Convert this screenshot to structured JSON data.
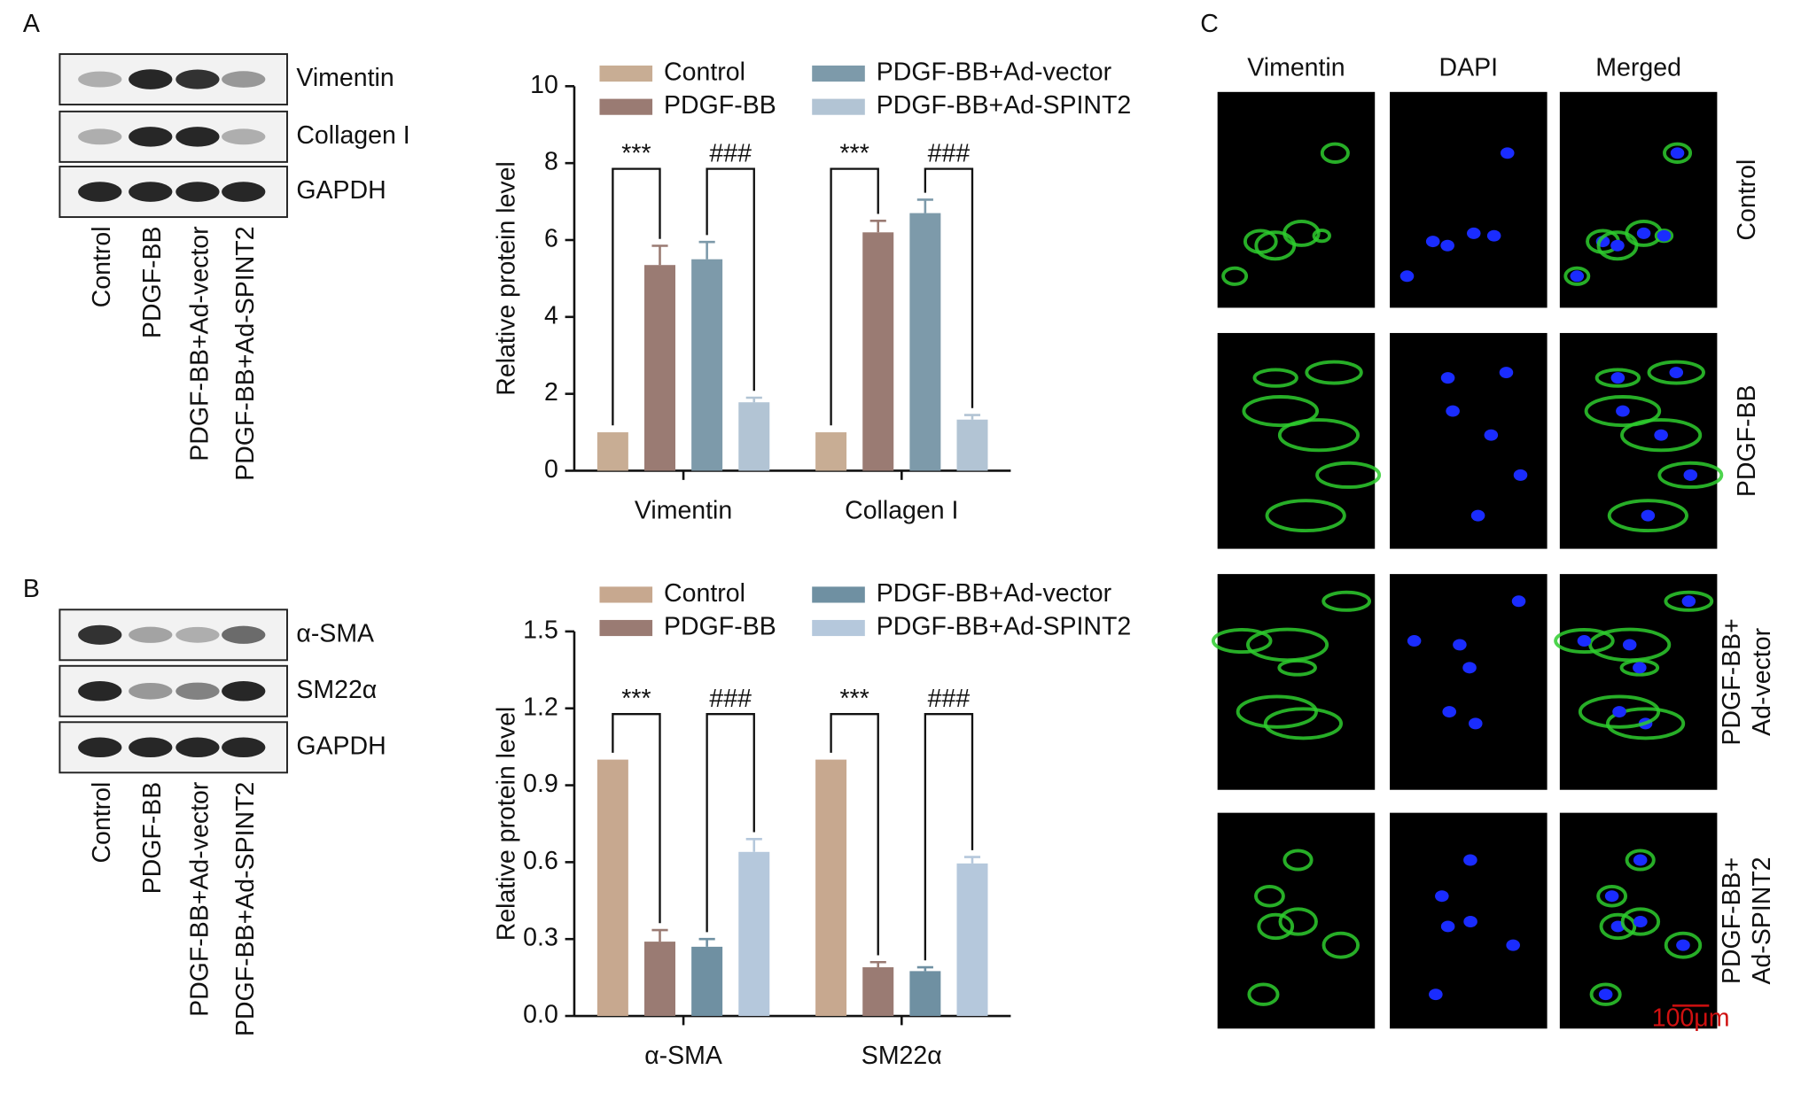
{
  "panels": [
    "A",
    "B",
    "C"
  ],
  "blots": [
    {
      "proteins": [
        "Vimentin",
        "Collagen I",
        "GAPDH"
      ],
      "lanes": [
        "Control",
        "PDGF-BB",
        "PDGF-BB+Ad-vector",
        "PDGF-BB+Ad-SPINT2"
      ]
    },
    {
      "proteins": [
        "α-SMA",
        "SM22α",
        "GAPDH"
      ],
      "lanes": [
        "Control",
        "PDGF-BB",
        "PDGF-BB+Ad-vector",
        "PDGF-BB+Ad-SPINT2"
      ]
    }
  ],
  "chart_data": [
    {
      "type": "bar",
      "y_label": "Relative protein level",
      "categories": [
        "Vimentin",
        "Collagen I"
      ],
      "series": [
        {
          "name": "Control",
          "color": "#c8ad94",
          "values": [
            1,
            1
          ],
          "errors": [
            null,
            null
          ]
        },
        {
          "name": "PDGF-BB",
          "color": "#9a7b73",
          "values": [
            5.35,
            6.2
          ],
          "errors": [
            0.5,
            0.3
          ]
        },
        {
          "name": "PDGF-BB+Ad-vector",
          "color": "#7d9aaa",
          "values": [
            5.5,
            6.7
          ],
          "errors": [
            0.45,
            0.35
          ]
        },
        {
          "name": "PDGF-BB+Ad-SPINT2",
          "color": "#b2c4d4",
          "values": [
            1.78,
            1.33
          ],
          "errors": [
            0.12,
            0.12
          ]
        }
      ],
      "annotations": [
        [
          "***",
          "###"
        ],
        [
          "***",
          "###"
        ]
      ],
      "ylim": [
        0,
        10
      ],
      "yticks": [
        0,
        2,
        4,
        6,
        8,
        10
      ],
      "grid": false
    },
    {
      "type": "bar",
      "y_label": "Relative protein level",
      "categories": [
        "α-SMA",
        "SM22α"
      ],
      "series": [
        {
          "name": "Control",
          "color": "#c7a88f",
          "values": [
            1,
            1
          ],
          "errors": [
            null,
            null
          ]
        },
        {
          "name": "PDGF-BB",
          "color": "#9a7b73",
          "values": [
            0.29,
            0.19
          ],
          "errors": [
            0.045,
            0.02
          ]
        },
        {
          "name": "PDGF-BB+Ad-vector",
          "color": "#6f90a2",
          "values": [
            0.27,
            0.175
          ],
          "errors": [
            0.03,
            0.015
          ]
        },
        {
          "name": "PDGF-BB+Ad-SPINT2",
          "color": "#b5c8dc",
          "values": [
            0.64,
            0.595
          ],
          "errors": [
            0.05,
            0.025
          ]
        }
      ],
      "annotations": [
        [
          "***",
          "###"
        ],
        [
          "***",
          "###"
        ]
      ],
      "ylim": [
        0,
        1.5
      ],
      "yticks": [
        {
          "value": 0,
          "label": "0.0"
        },
        0.3,
        0.6,
        0.9,
        1.2,
        1.5
      ],
      "grid": false
    }
  ],
  "microscopy": {
    "columns": [
      "Vimentin",
      "DAPI",
      "Merged"
    ],
    "rows": [
      [
        "Control"
      ],
      [
        "PDGF-BB"
      ],
      [
        "PDGF-BB+",
        "Ad-vector"
      ],
      [
        "PDGF-BB+",
        "Ad-SPINT2"
      ]
    ],
    "scale_bar": "100μm"
  }
}
